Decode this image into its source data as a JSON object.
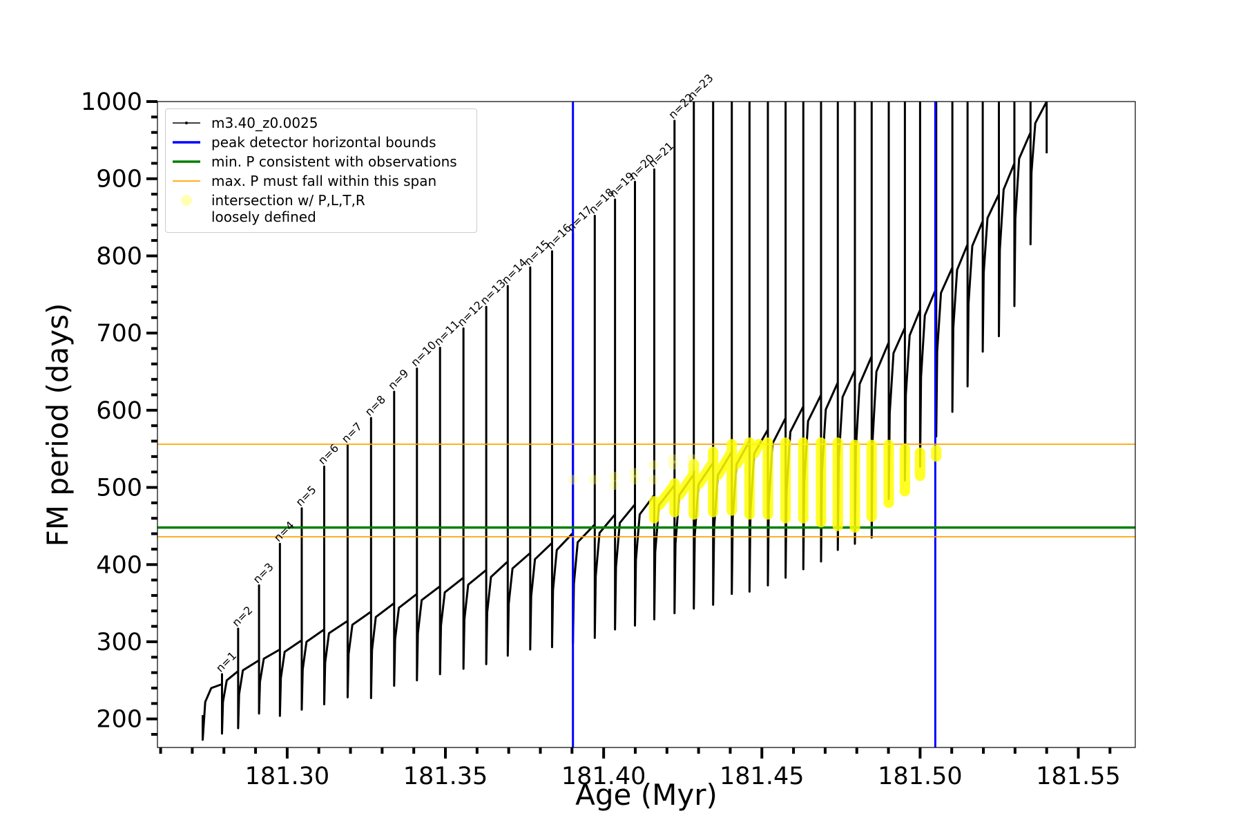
{
  "chart_data": {
    "type": "line",
    "xlabel": "Age (Myr)",
    "ylabel": "FM period (days)",
    "xlim": [
      181.259,
      181.568
    ],
    "ylim": [
      163,
      1000
    ],
    "xticks": [
      {
        "value": 181.3,
        "label": "181.30"
      },
      {
        "value": 181.35,
        "label": "181.35"
      },
      {
        "value": 181.4,
        "label": "181.40"
      },
      {
        "value": 181.45,
        "label": "181.45"
      },
      {
        "value": 181.5,
        "label": "181.50"
      },
      {
        "value": 181.55,
        "label": "181.55"
      }
    ],
    "xminorticks": [
      181.26,
      181.27,
      181.28,
      181.29,
      181.31,
      181.32,
      181.33,
      181.34,
      181.36,
      181.37,
      181.38,
      181.39,
      181.41,
      181.42,
      181.43,
      181.44,
      181.46,
      181.47,
      181.48,
      181.49,
      181.51,
      181.52,
      181.53,
      181.54,
      181.56
    ],
    "yticks": [
      200,
      300,
      400,
      500,
      600,
      700,
      800,
      900,
      1000
    ],
    "yminorticks": [
      180,
      220,
      240,
      260,
      280,
      320,
      340,
      360,
      380,
      420,
      440,
      460,
      480,
      520,
      540,
      560,
      580,
      620,
      640,
      660,
      680,
      720,
      740,
      760,
      780,
      820,
      840,
      860,
      880,
      920,
      940,
      960,
      980
    ],
    "legend": "upper left",
    "series": [
      {
        "name": "m3.40_z0.0025",
        "color": "#000000",
        "style": "line",
        "x": [
          181.2733,
          181.2733,
          181.2741,
          181.276,
          181.2794,
          181.2794,
          181.2794,
          181.2797,
          181.2809,
          181.2845,
          181.2845,
          181.2845,
          181.2848,
          181.286,
          181.2911,
          181.2911,
          181.2911,
          181.2914,
          181.2926,
          181.2977,
          181.2977,
          181.2977,
          181.298,
          181.2992,
          181.3046,
          181.3046,
          181.3046,
          181.3049,
          181.3061,
          181.3117,
          181.3117,
          181.3117,
          181.312,
          181.3132,
          181.3191,
          181.3191,
          181.3191,
          181.3194,
          181.3206,
          181.3265,
          181.3265,
          181.3265,
          181.3268,
          181.328,
          181.3338,
          181.3338,
          181.3338,
          181.3341,
          181.3353,
          181.341,
          181.341,
          181.341,
          181.3413,
          181.3425,
          181.3483,
          181.3483,
          181.3483,
          181.3486,
          181.3498,
          181.3557,
          181.3557,
          181.3557,
          181.356,
          181.3572,
          181.3629,
          181.3629,
          181.3629,
          181.3632,
          181.3644,
          181.3697,
          181.3697,
          181.3697,
          181.37,
          181.3712,
          181.3768,
          181.3768,
          181.3768,
          181.3771,
          181.3783,
          181.3837,
          181.3837,
          181.3837,
          181.384,
          181.3852,
          181.3903,
          181.3903,
          181.3903,
          181.3906,
          181.3918,
          181.3972,
          181.3972,
          181.3972,
          181.3975,
          181.3987,
          181.4036,
          181.4036,
          181.4036,
          181.4039,
          181.4051,
          181.4099,
          181.4099,
          181.4099,
          181.4102,
          181.4114,
          181.416,
          181.416,
          181.416,
          181.4163,
          181.4175,
          181.4224,
          181.4224,
          181.4224,
          181.4227,
          181.4239,
          181.4285,
          181.4285,
          181.4285,
          181.4288,
          181.43,
          181.4346,
          181.4346,
          181.4346,
          181.4349,
          181.4361,
          181.4405,
          181.4405,
          181.4405,
          181.4408,
          181.442,
          181.4461,
          181.4461,
          181.4461,
          181.4464,
          181.4476,
          181.4519,
          181.4519,
          181.4519,
          181.4522,
          181.4534,
          181.4575,
          181.4575,
          181.4575,
          181.4578,
          181.459,
          181.4631,
          181.4631,
          181.4631,
          181.4634,
          181.4646,
          181.4687,
          181.4687,
          181.4687,
          181.469,
          181.4702,
          181.474,
          181.474,
          181.474,
          181.4743,
          181.4755,
          181.4794,
          181.4794,
          181.4794,
          181.4797,
          181.4809,
          181.4847,
          181.4847,
          181.4847,
          181.485,
          181.4862,
          181.4901,
          181.4901,
          181.4901,
          181.4904,
          181.4916,
          181.4952,
          181.4952,
          181.4952,
          181.4955,
          181.4967,
          181.5,
          181.5,
          181.5,
          181.5003,
          181.5015,
          181.5051,
          181.5051,
          181.5051,
          181.5054,
          181.5066,
          181.5102,
          181.5102,
          181.5102,
          181.5105,
          181.5117,
          181.515,
          181.515,
          181.515,
          181.5153,
          181.5165,
          181.5198,
          181.5198,
          181.5198,
          181.5201,
          181.5213,
          181.5249,
          181.5249,
          181.5249,
          181.5252,
          181.5264,
          181.5298,
          181.5298,
          181.5298,
          181.5301,
          181.5313,
          181.5349,
          181.5349,
          181.5349,
          181.5352,
          181.5364,
          181.54,
          181.54,
          181.54
        ],
        "y": [
          205,
          173,
          222,
          240,
          245,
          258,
          181,
          222,
          250,
          262,
          317,
          188,
          232,
          263,
          276,
          373,
          207,
          248,
          278,
          290,
          427,
          204,
          253,
          287,
          302,
          473,
          212,
          264,
          300,
          316,
          527,
          219,
          273,
          311,
          327,
          555,
          228,
          284,
          322,
          339,
          590,
          227,
          289,
          332,
          350,
          624,
          243,
          303,
          344,
          362,
          654,
          250,
          311,
          354,
          372,
          681,
          258,
          321,
          364,
          383,
          706,
          265,
          329,
          374,
          393,
          734,
          271,
          338,
          384,
          404,
          761,
          282,
          349,
          395,
          415,
          785,
          290,
          359,
          407,
          428,
          806,
          293,
          367,
          419,
          441,
          829,
          298,
          375,
          429,
          452,
          852,
          305,
          385,
          441,
          465,
          873,
          316,
          397,
          454,
          478,
          896,
          321,
          406,
          465,
          490,
          912,
          329,
          416,
          477,
          503,
          975,
          337,
          427,
          490,
          517,
          1000,
          343,
          438,
          504,
          532,
          1000,
          348,
          447,
          516,
          546,
          1000,
          362,
          461,
          530,
          560,
          1000,
          365,
          470,
          544,
          575,
          1000,
          373,
          482,
          557,
          590,
          1000,
          383,
          494,
          572,
          605,
          1000,
          394,
          507,
          586,
          620,
          1000,
          404,
          520,
          601,
          636,
          1000,
          419,
          536,
          617,
          652,
          1000,
          427,
          549,
          634,
          670,
          1000,
          435,
          562,
          650,
          688,
          1000,
          485,
          596,
          674,
          707,
          1000,
          509,
          620,
          697,
          730,
          1000,
          527,
          643,
          723,
          758,
          1000,
          566,
          676,
          752,
          785,
          1000,
          598,
          707,
          782,
          815,
          1000,
          631,
          738,
          813,
          845,
          1000,
          676,
          778,
          849,
          880,
          1000,
          696,
          808,
          886,
          920,
          1000,
          735,
          848,
          926,
          960,
          1000,
          815,
          908,
          972,
          1000,
          1000,
          933
        ]
      },
      {
        "name": "intersection w/ P,L,T,R\nloosely defined",
        "color": "#ffff00",
        "style": "band",
        "alpha": 0.85,
        "x": [
          181.416,
          181.416,
          null,
          181.4175,
          181.4224,
          null,
          181.4224,
          181.4224,
          null,
          181.4239,
          181.4285,
          null,
          181.4285,
          181.4285,
          null,
          181.43,
          181.4346,
          null,
          181.4346,
          181.4346,
          null,
          181.4361,
          181.4405,
          null,
          181.4405,
          181.4405,
          null,
          181.442,
          181.4461,
          null,
          181.4461,
          181.4461,
          null,
          181.4476,
          181.449,
          null,
          181.4519,
          181.4519,
          null,
          181.4575,
          181.4575,
          null,
          181.4631,
          181.4631,
          null,
          181.4687,
          181.4687,
          null,
          181.474,
          181.474,
          null,
          181.4794,
          181.4794,
          null,
          181.4847,
          181.4847,
          null,
          181.4901,
          181.4901,
          null,
          181.4952,
          181.4952,
          null,
          181.5,
          181.5,
          null,
          181.5051,
          181.5051
        ],
        "y": [
          460,
          482,
          null,
          477,
          503,
          null,
          468,
          505,
          null,
          490,
          517,
          null,
          465,
          530,
          null,
          504,
          532,
          null,
          468,
          546,
          null,
          516,
          546,
          null,
          470,
          556,
          null,
          530,
          556,
          null,
          465,
          558,
          null,
          544,
          556,
          null,
          465,
          558,
          null,
          460,
          558,
          null,
          460,
          558,
          null,
          455,
          558,
          null,
          450,
          558,
          null,
          448,
          555,
          null,
          462,
          555,
          null,
          480,
          555,
          null,
          495,
          550,
          null,
          515,
          545,
          null,
          540,
          548
        ]
      },
      {
        "color": "#ffff66",
        "style": "markers",
        "alpha": 0.35,
        "x": [
          181.3903,
          181.3969,
          181.4033,
          181.4033,
          181.4097,
          181.4097,
          181.4158,
          181.4158,
          181.4219,
          181.4219,
          181.428,
          181.428
        ],
        "y": [
          510,
          510,
          514,
          503,
          510,
          519,
          529,
          510,
          529,
          537,
          537,
          527
        ]
      }
    ],
    "reference_lines": [
      {
        "name": "peak detector horizontal bounds",
        "color": "#0000ff",
        "orientation": "vertical",
        "values": [
          181.3903,
          181.5048
        ]
      },
      {
        "name": "min. P consistent with observations",
        "color": "#008000",
        "orientation": "horizontal",
        "values": [
          448
        ]
      },
      {
        "name": "max. P must fall within this span",
        "color": "orange",
        "orientation": "horizontal",
        "values": [
          556,
          436
        ]
      }
    ],
    "annotations": [
      "n=1",
      "n=2",
      "n=3",
      "n=4",
      "n=5",
      "n=6",
      "n=7",
      "n=8",
      "n=9",
      "n=10",
      "n=11",
      "n=12",
      "n=13",
      "n=14",
      "n=15",
      "n=16",
      "n=17",
      "n=18",
      "n=19",
      "n=20",
      "n=21",
      "n=22",
      "n=23"
    ]
  }
}
